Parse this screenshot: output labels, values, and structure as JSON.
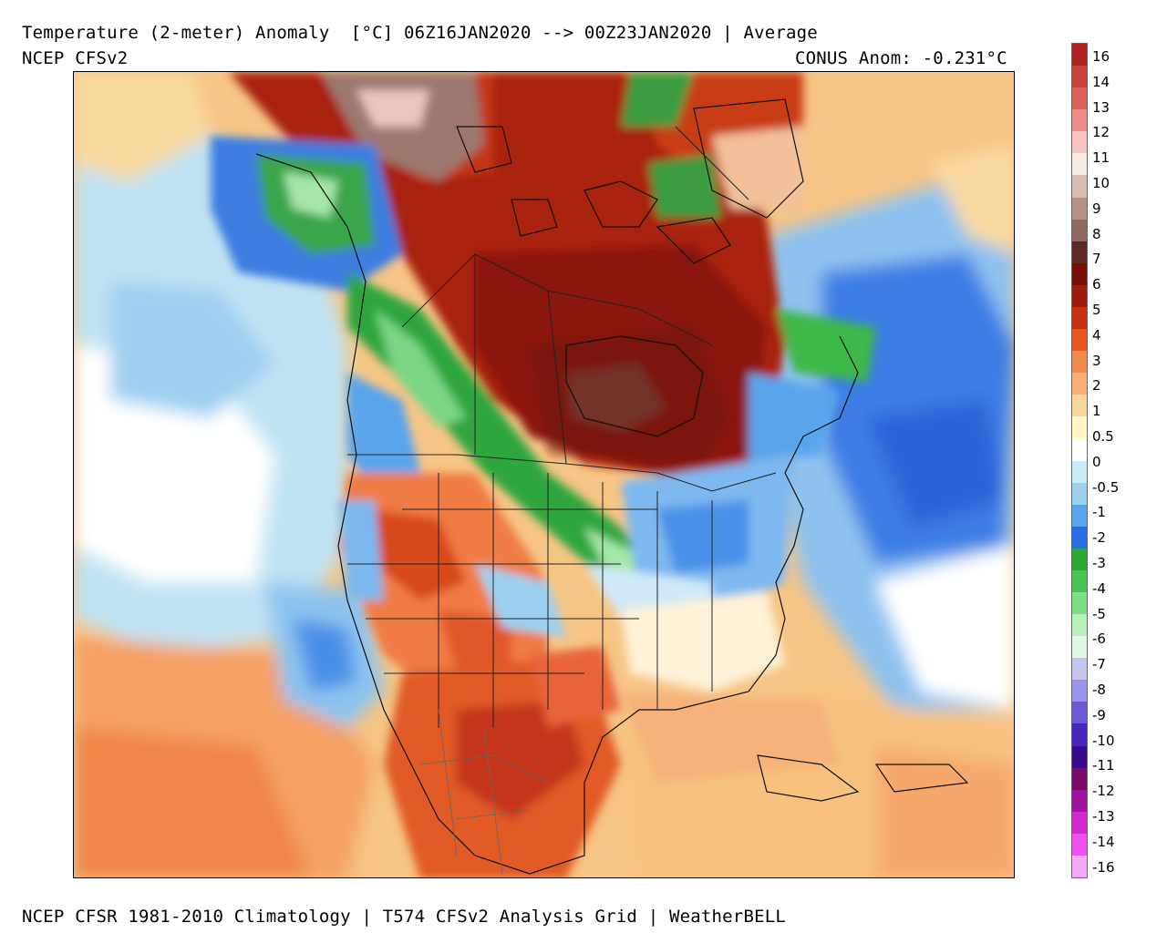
{
  "header": {
    "title": "Temperature (2-meter) Anomaly  [°C] 06Z16JAN2020 --> 00Z23JAN2020 | Average",
    "model": "NCEP CFSv2",
    "conus_anomaly": "CONUS Anom: -0.231°C"
  },
  "footer": "NCEP CFSR 1981-2010 Climatology | T574 CFSv2 Analysis Grid | WeatherBELL",
  "colorbar": {
    "tick_labels": [
      "16",
      "14",
      "13",
      "12",
      "11",
      "10",
      "9",
      "8",
      "7",
      "6",
      "5",
      "4",
      "3",
      "2",
      "1",
      "0.5",
      "0",
      "-0.5",
      "-1",
      "-2",
      "-3",
      "-4",
      "-5",
      "-6",
      "-7",
      "-8",
      "-9",
      "-10",
      "-11",
      "-12",
      "-13",
      "-14",
      "-16"
    ],
    "colors": [
      "#b22222",
      "#c8423c",
      "#dc5f5a",
      "#ee8c8a",
      "#f6c4c2",
      "#f7ebe6",
      "#d7bcb0",
      "#b89284",
      "#8e6a60",
      "#5e2c26",
      "#7a0f07",
      "#a01a0d",
      "#c8300f",
      "#e8561f",
      "#f28a4c",
      "#f6b074",
      "#f8d79a",
      "#fff6c8",
      "#ffffff",
      "#c8ecf4",
      "#9bd0f0",
      "#5aa5ec",
      "#2a6fe0",
      "#2aa83a",
      "#46c454",
      "#7ede84",
      "#b8f0bc",
      "#e4f7e4",
      "#c8c4f0",
      "#9c94e8",
      "#6a5ad8",
      "#4a28c0",
      "#3a0a8c",
      "#7a0a6a",
      "#a014a0",
      "#d228d2",
      "#f050f0",
      "#f8a8f8"
    ]
  },
  "map": {
    "regions": [
      {
        "name": "arctic-canada-warm",
        "anomaly": "5 to 10"
      },
      {
        "name": "hudson-bay-warm-core",
        "anomaly": "7 to 9"
      },
      {
        "name": "rockies-cold-band",
        "anomaly": "-3 to -6"
      },
      {
        "name": "alaska-cold",
        "anomaly": "-2 to -5"
      },
      {
        "name": "southwest-us-warm",
        "anomaly": "2 to 4"
      },
      {
        "name": "northeast-us-cool",
        "anomaly": "-1 to -2"
      },
      {
        "name": "north-atlantic-cool",
        "anomaly": "-1 to -3"
      },
      {
        "name": "gulf-and-caribbean-warm",
        "anomaly": "0.5 to 2"
      }
    ]
  }
}
